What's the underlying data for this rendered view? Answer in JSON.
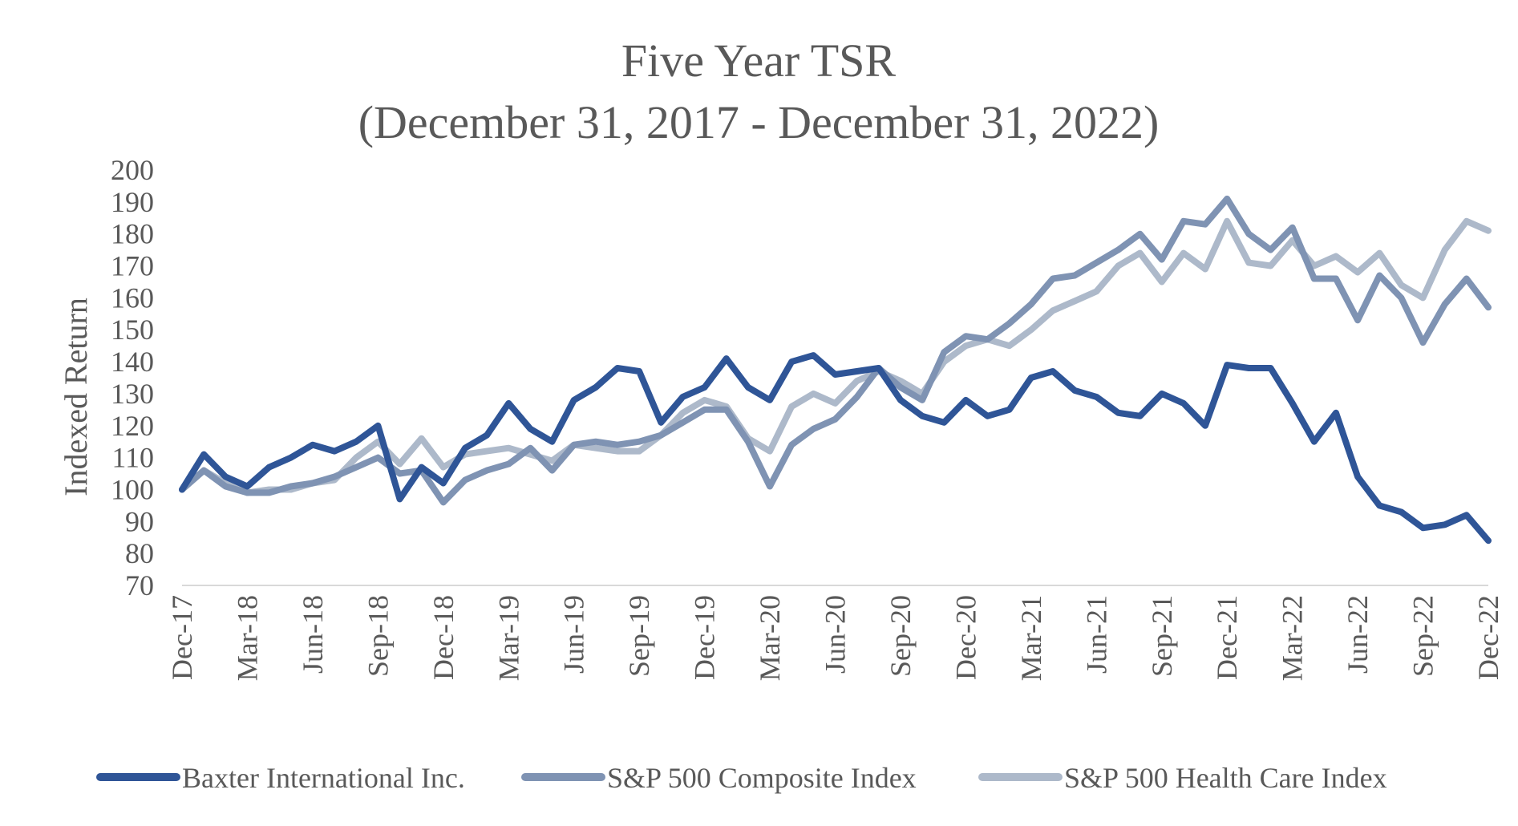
{
  "chart_data": {
    "type": "line",
    "title": "Five Year TSR",
    "subtitle": "(December 31, 2017 - December 31, 2022)",
    "xlabel": "",
    "ylabel": "Indexed Return",
    "ylim": [
      70,
      200
    ],
    "yticks": [
      70,
      80,
      90,
      100,
      110,
      120,
      130,
      140,
      150,
      160,
      170,
      180,
      190,
      200
    ],
    "grid": false,
    "legend_position": "bottom",
    "x_tick_labels": [
      "Dec-17",
      "Mar-18",
      "Jun-18",
      "Sep-18",
      "Dec-18",
      "Mar-19",
      "Jun-19",
      "Sep-19",
      "Dec-19",
      "Mar-20",
      "Jun-20",
      "Sep-20",
      "Dec-20",
      "Mar-21",
      "Jun-21",
      "Sep-21",
      "Dec-21",
      "Mar-22",
      "Jun-22",
      "Sep-22",
      "Dec-22"
    ],
    "x": [
      "Dec-17",
      "Jan-18",
      "Feb-18",
      "Mar-18",
      "Apr-18",
      "May-18",
      "Jun-18",
      "Jul-18",
      "Aug-18",
      "Sep-18",
      "Oct-18",
      "Nov-18",
      "Dec-18",
      "Jan-19",
      "Feb-19",
      "Mar-19",
      "Apr-19",
      "May-19",
      "Jun-19",
      "Jul-19",
      "Aug-19",
      "Sep-19",
      "Oct-19",
      "Nov-19",
      "Dec-19",
      "Jan-20",
      "Feb-20",
      "Mar-20",
      "Apr-20",
      "May-20",
      "Jun-20",
      "Jul-20",
      "Aug-20",
      "Sep-20",
      "Oct-20",
      "Nov-20",
      "Dec-20",
      "Jan-21",
      "Feb-21",
      "Mar-21",
      "Apr-21",
      "May-21",
      "Jun-21",
      "Jul-21",
      "Aug-21",
      "Sep-21",
      "Oct-21",
      "Nov-21",
      "Dec-21",
      "Jan-22",
      "Feb-22",
      "Mar-22",
      "Apr-22",
      "May-22",
      "Jun-22",
      "Jul-22",
      "Aug-22",
      "Sep-22",
      "Oct-22",
      "Nov-22",
      "Dec-22"
    ],
    "series": [
      {
        "name": "Baxter International Inc.",
        "color": "#2f5597",
        "values": [
          100,
          111,
          104,
          101,
          107,
          110,
          114,
          112,
          115,
          120,
          97,
          107,
          102,
          113,
          117,
          127,
          119,
          115,
          128,
          132,
          138,
          137,
          121,
          129,
          132,
          141,
          132,
          128,
          140,
          142,
          136,
          137,
          138,
          128,
          123,
          121,
          128,
          123,
          125,
          135,
          137,
          131,
          129,
          124,
          123,
          130,
          127,
          120,
          139,
          138,
          138,
          127,
          115,
          124,
          104,
          95,
          93,
          88,
          89,
          92,
          84
        ]
      },
      {
        "name": "S&P 500 Composite Index",
        "color": "#7f93b3",
        "values": [
          100,
          106,
          101,
          99,
          99,
          101,
          102,
          104,
          107,
          110,
          105,
          106,
          96,
          103,
          106,
          108,
          113,
          106,
          114,
          115,
          114,
          115,
          117,
          121,
          125,
          125,
          115,
          101,
          114,
          119,
          122,
          129,
          138,
          132,
          128,
          143,
          148,
          147,
          152,
          158,
          166,
          167,
          171,
          175,
          180,
          172,
          184,
          183,
          191,
          180,
          175,
          182,
          166,
          166,
          153,
          167,
          160,
          146,
          158,
          166,
          157
        ]
      },
      {
        "name": "S&P 500 Health Care Index",
        "color": "#adb9ca",
        "values": [
          100,
          106,
          102,
          99,
          100,
          100,
          102,
          103,
          110,
          115,
          108,
          116,
          107,
          111,
          112,
          113,
          111,
          109,
          114,
          113,
          112,
          112,
          117,
          124,
          128,
          126,
          116,
          112,
          126,
          130,
          127,
          134,
          137,
          134,
          130,
          140,
          145,
          147,
          145,
          150,
          156,
          159,
          162,
          170,
          174,
          165,
          174,
          169,
          184,
          171,
          170,
          178,
          170,
          173,
          168,
          174,
          164,
          160,
          175,
          184,
          181
        ]
      }
    ]
  }
}
